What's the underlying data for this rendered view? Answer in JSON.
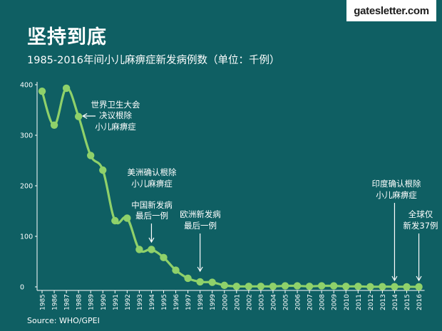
{
  "brand": {
    "site": "gatesletter.com"
  },
  "header": {
    "title": "坚持到底",
    "subtitle": "1985-2016年间小儿麻痹症新发病例数（单位：千例）"
  },
  "footer": {
    "source": "Source: WHO/GPEI"
  },
  "colors": {
    "background": "#0f5f63",
    "line": "#8fd16a",
    "text": "#ffffff"
  },
  "chart_data": {
    "type": "line",
    "title": "1985-2016年间小儿麻痹症新发病例数（单位：千例）",
    "x": [
      1985,
      1986,
      1987,
      1988,
      1989,
      1990,
      1991,
      1992,
      1993,
      1994,
      1995,
      1996,
      1997,
      1998,
      1999,
      2000,
      2001,
      2002,
      2003,
      2004,
      2005,
      2006,
      2007,
      2008,
      2009,
      2010,
      2011,
      2012,
      2013,
      2014,
      2015,
      2016
    ],
    "x_labels": [
      "1985",
      "1986",
      "1987",
      "1988",
      "1989",
      "1990",
      "1991",
      "1992",
      "1993",
      "1994",
      "1995",
      "1996",
      "1997",
      "1998",
      "1999",
      "2000",
      "2001",
      "2002",
      "2003",
      "2004",
      "2005",
      "2006",
      "2007",
      "2008",
      "2009",
      "2010",
      "2011",
      "2012",
      "2013",
      "2014",
      "2015",
      "2016"
    ],
    "values": [
      387,
      320,
      393,
      337,
      260,
      231,
      131,
      136,
      74,
      74,
      58,
      33,
      17,
      10,
      9,
      3,
      1,
      1,
      1,
      1,
      2,
      2,
      1,
      2,
      2,
      1,
      1,
      0.2,
      0.4,
      0.4,
      0.1,
      0.04
    ],
    "ylim": [
      0,
      400
    ],
    "yticks": [
      0,
      100,
      200,
      300,
      400
    ],
    "ytick_labels": [
      "0",
      "100",
      "200",
      "300",
      "400"
    ],
    "grid": false,
    "annotations": [
      {
        "id": "wha",
        "year": 1988,
        "lines": [
          "世界卫生大会",
          "决议根除",
          "小儿麻痹症"
        ]
      },
      {
        "id": "americas",
        "year": 1994,
        "lines": [
          "美洲确认根除",
          "小儿麻痹症",
          "中国新发病",
          "最后一例"
        ]
      },
      {
        "id": "europe",
        "year": 1998,
        "lines": [
          "欧洲新发病",
          "最后一例"
        ]
      },
      {
        "id": "india",
        "year": 2014,
        "lines": [
          "印度确认根除",
          "小儿麻痹症"
        ]
      },
      {
        "id": "global",
        "year": 2016,
        "lines": [
          "全球仅",
          "新发37例"
        ]
      }
    ]
  }
}
